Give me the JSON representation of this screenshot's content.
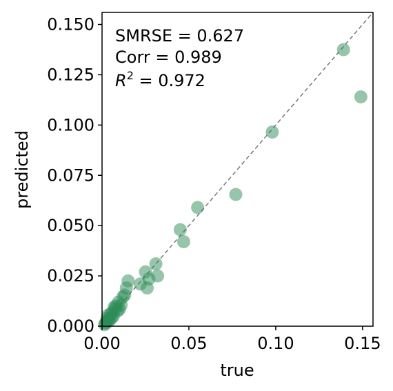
{
  "chart_data": {
    "type": "scatter",
    "xlabel": "true",
    "ylabel": "predicted",
    "xlim": [
      0,
      0.156
    ],
    "ylim": [
      0,
      0.156
    ],
    "x_ticks": [
      "0.00",
      "0.05",
      "0.10",
      "0.15"
    ],
    "x_tick_values": [
      0,
      0.05,
      0.1,
      0.15
    ],
    "y_ticks": [
      "0.000",
      "0.025",
      "0.050",
      "0.075",
      "0.100",
      "0.125",
      "0.150"
    ],
    "y_tick_values": [
      0,
      0.025,
      0.05,
      0.075,
      0.1,
      0.125,
      0.15
    ],
    "annotations": {
      "smrse": "SMRSE = 0.627",
      "corr": "Corr = 0.989",
      "r2_symbol": "R",
      "r2_exponent": "2",
      "r2_value": " = 0.972"
    },
    "reference_line": {
      "style": "dashed",
      "color": "#777777",
      "from": [
        0,
        0
      ],
      "to": [
        0.156,
        0.156
      ]
    },
    "marker_color": "#2e8b57",
    "marker_opacity": 0.5,
    "grid": false,
    "points": [
      {
        "x": 0.0015,
        "y": 0.0008
      },
      {
        "x": 0.002,
        "y": 0.0015
      },
      {
        "x": 0.0025,
        "y": 0.002
      },
      {
        "x": 0.003,
        "y": 0.003
      },
      {
        "x": 0.003,
        "y": 0.004
      },
      {
        "x": 0.0035,
        "y": 0.0055
      },
      {
        "x": 0.004,
        "y": 0.0025
      },
      {
        "x": 0.0045,
        "y": 0.0035
      },
      {
        "x": 0.005,
        "y": 0.006
      },
      {
        "x": 0.0055,
        "y": 0.004
      },
      {
        "x": 0.006,
        "y": 0.007
      },
      {
        "x": 0.0065,
        "y": 0.005
      },
      {
        "x": 0.007,
        "y": 0.0095
      },
      {
        "x": 0.0075,
        "y": 0.0085
      },
      {
        "x": 0.008,
        "y": 0.01
      },
      {
        "x": 0.009,
        "y": 0.0075
      },
      {
        "x": 0.0095,
        "y": 0.012
      },
      {
        "x": 0.01,
        "y": 0.0085
      },
      {
        "x": 0.011,
        "y": 0.0105
      },
      {
        "x": 0.012,
        "y": 0.0145
      },
      {
        "x": 0.013,
        "y": 0.0155
      },
      {
        "x": 0.014,
        "y": 0.019
      },
      {
        "x": 0.015,
        "y": 0.0225
      },
      {
        "x": 0.022,
        "y": 0.021
      },
      {
        "x": 0.025,
        "y": 0.027
      },
      {
        "x": 0.026,
        "y": 0.019
      },
      {
        "x": 0.027,
        "y": 0.0235
      },
      {
        "x": 0.031,
        "y": 0.031
      },
      {
        "x": 0.032,
        "y": 0.025
      },
      {
        "x": 0.045,
        "y": 0.048
      },
      {
        "x": 0.047,
        "y": 0.042
      },
      {
        "x": 0.055,
        "y": 0.059
      },
      {
        "x": 0.077,
        "y": 0.0655
      },
      {
        "x": 0.098,
        "y": 0.0965
      },
      {
        "x": 0.139,
        "y": 0.1375
      },
      {
        "x": 0.149,
        "y": 0.114
      }
    ]
  }
}
